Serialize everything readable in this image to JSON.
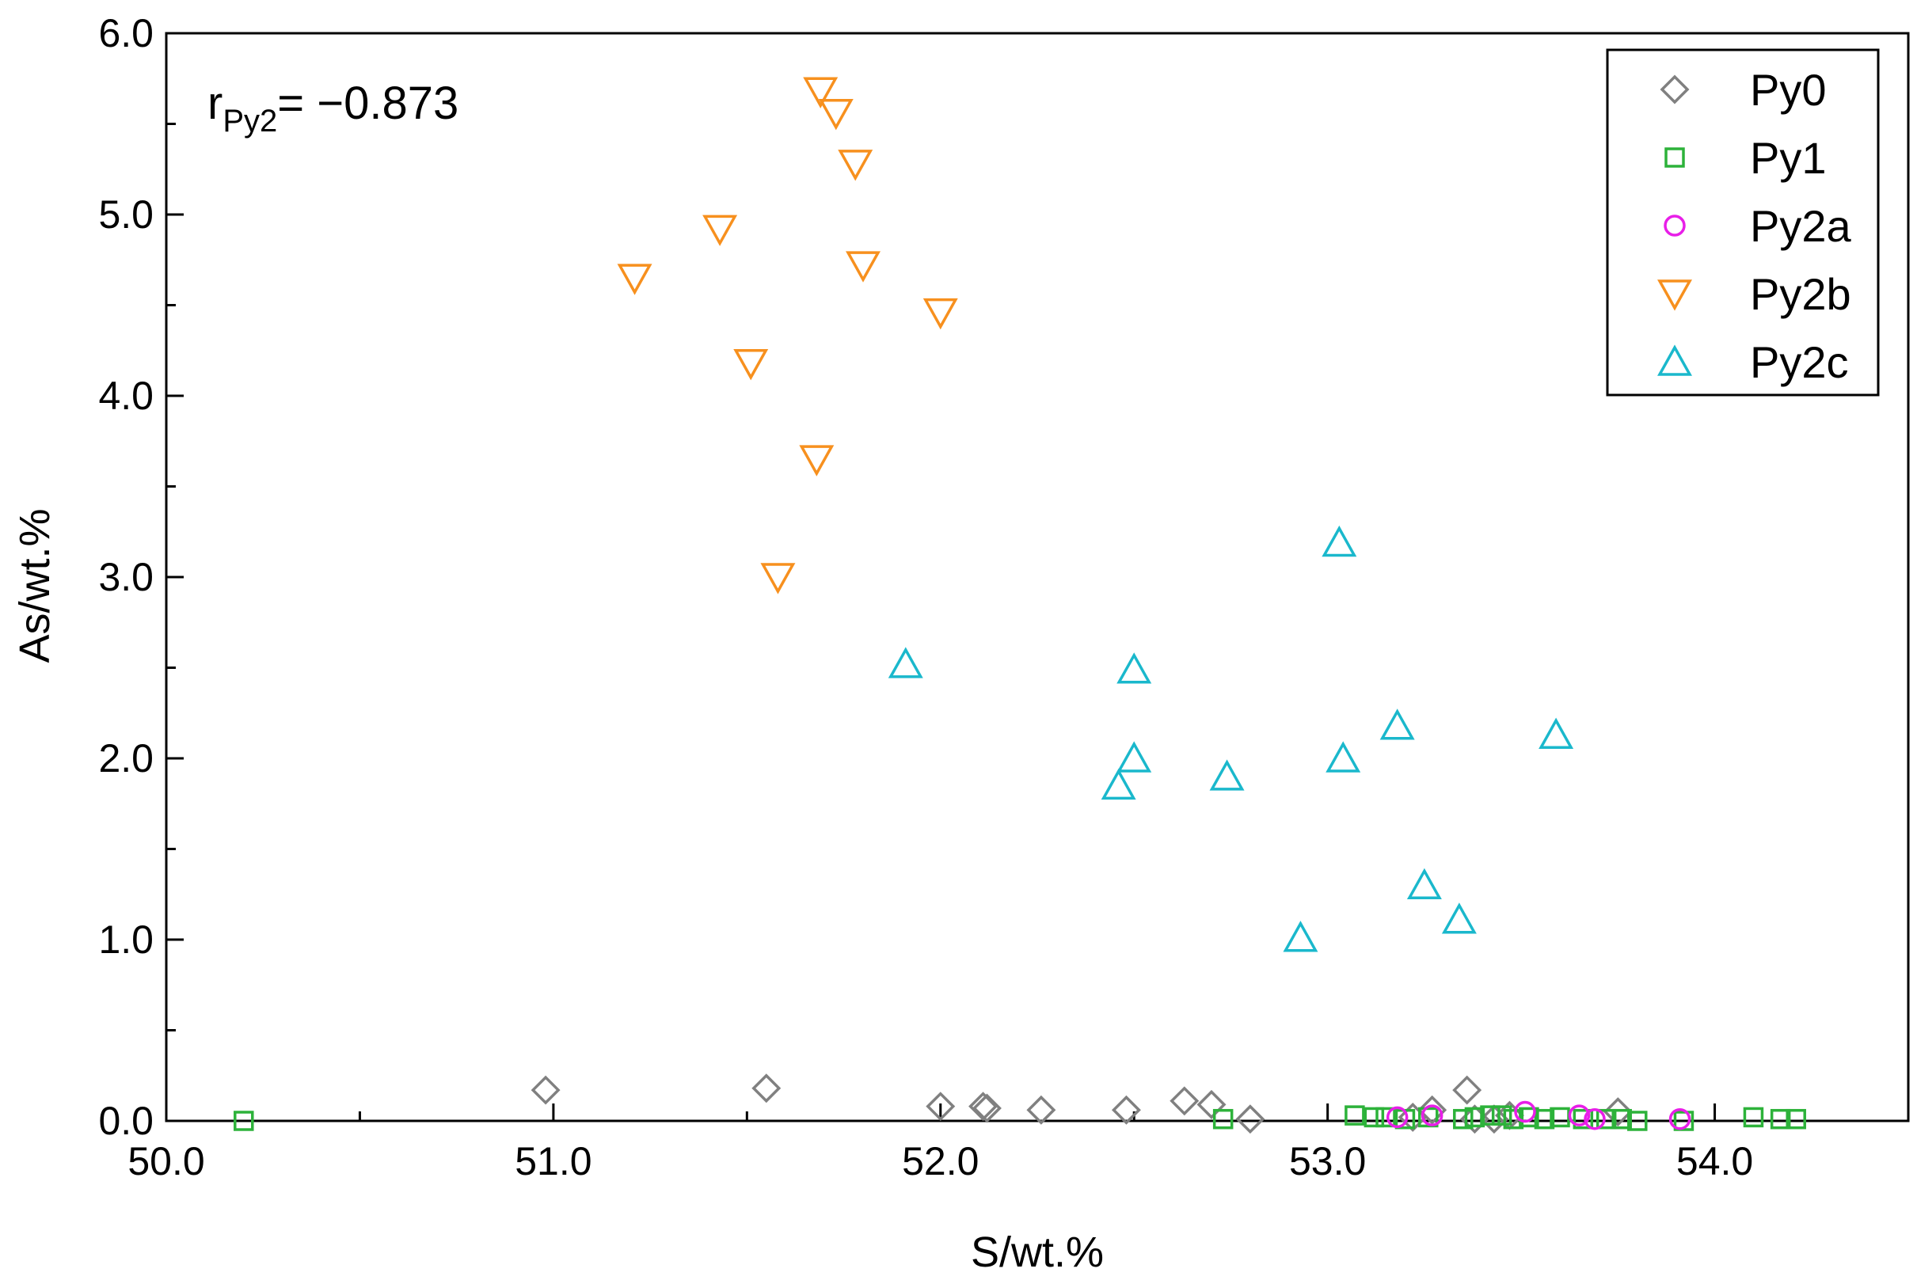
{
  "chart_data": {
    "type": "scatter",
    "title": "",
    "xlabel": "S/wt.%",
    "ylabel": "As/wt.%",
    "xlim": [
      50.0,
      54.5
    ],
    "ylim": [
      0.0,
      6.0
    ],
    "xticks": [
      50.0,
      51.0,
      52.0,
      53.0,
      54.0
    ],
    "xtick_labels": [
      "50.0",
      "51.0",
      "52.0",
      "53.0",
      "54.0"
    ],
    "yticks": [
      0.0,
      1.0,
      2.0,
      3.0,
      4.0,
      5.0,
      6.0
    ],
    "ytick_labels": [
      "0.0",
      "1.0",
      "2.0",
      "3.0",
      "4.0",
      "5.0",
      "6.0"
    ],
    "grid": false,
    "legend_position": "top-right",
    "annotation": {
      "prefix": "r",
      "subscript": "Py2",
      "suffix": "= −0.873"
    },
    "series": [
      {
        "name": "Py0",
        "marker": "diamond",
        "color": "#808080",
        "points": [
          [
            50.98,
            0.17
          ],
          [
            51.55,
            0.18
          ],
          [
            52.0,
            0.08
          ],
          [
            52.11,
            0.08
          ],
          [
            52.12,
            0.07
          ],
          [
            52.26,
            0.06
          ],
          [
            52.48,
            0.06
          ],
          [
            52.63,
            0.11
          ],
          [
            52.7,
            0.09
          ],
          [
            52.8,
            0.01
          ],
          [
            53.22,
            0.02
          ],
          [
            53.27,
            0.06
          ],
          [
            53.36,
            0.17
          ],
          [
            53.38,
            0.01
          ],
          [
            53.43,
            0.01
          ],
          [
            53.47,
            0.03
          ],
          [
            53.75,
            0.05
          ]
        ]
      },
      {
        "name": "Py1",
        "marker": "square",
        "color": "#2db23a",
        "points": [
          [
            50.2,
            0.0
          ],
          [
            52.73,
            0.01
          ],
          [
            53.07,
            0.03
          ],
          [
            53.12,
            0.02
          ],
          [
            53.15,
            0.02
          ],
          [
            53.2,
            0.01
          ],
          [
            53.26,
            0.02
          ],
          [
            53.35,
            0.01
          ],
          [
            53.38,
            0.02
          ],
          [
            53.42,
            0.03
          ],
          [
            53.45,
            0.03
          ],
          [
            53.48,
            0.01
          ],
          [
            53.52,
            0.02
          ],
          [
            53.56,
            0.01
          ],
          [
            53.6,
            0.02
          ],
          [
            53.66,
            0.01
          ],
          [
            53.72,
            0.01
          ],
          [
            53.76,
            0.01
          ],
          [
            53.8,
            0.0
          ],
          [
            53.92,
            0.0
          ],
          [
            54.1,
            0.02
          ],
          [
            54.17,
            0.01
          ],
          [
            54.21,
            0.01
          ]
        ]
      },
      {
        "name": "Py2a",
        "marker": "circle",
        "color": "#e81ee8",
        "points": [
          [
            53.18,
            0.02
          ],
          [
            53.27,
            0.03
          ],
          [
            53.51,
            0.05
          ],
          [
            53.65,
            0.03
          ],
          [
            53.69,
            0.01
          ],
          [
            53.91,
            0.01
          ]
        ]
      },
      {
        "name": "Py2b",
        "marker": "triangle-down",
        "color": "#f7901e",
        "points": [
          [
            51.21,
            4.65
          ],
          [
            51.43,
            4.92
          ],
          [
            51.51,
            4.18
          ],
          [
            51.58,
            3.0
          ],
          [
            51.68,
            3.65
          ],
          [
            51.69,
            5.68
          ],
          [
            51.73,
            5.56
          ],
          [
            51.78,
            5.28
          ],
          [
            51.8,
            4.72
          ],
          [
            52.0,
            4.46
          ]
        ]
      },
      {
        "name": "Py2c",
        "marker": "triangle-up",
        "color": "#1ab8cc",
        "points": [
          [
            51.91,
            2.52
          ],
          [
            52.46,
            1.85
          ],
          [
            52.5,
            2.0
          ],
          [
            52.5,
            2.49
          ],
          [
            52.74,
            1.9
          ],
          [
            52.93,
            1.01
          ],
          [
            53.03,
            3.19
          ],
          [
            53.04,
            2.0
          ],
          [
            53.18,
            2.18
          ],
          [
            53.25,
            1.3
          ],
          [
            53.34,
            1.11
          ],
          [
            53.59,
            2.13
          ]
        ]
      }
    ]
  }
}
